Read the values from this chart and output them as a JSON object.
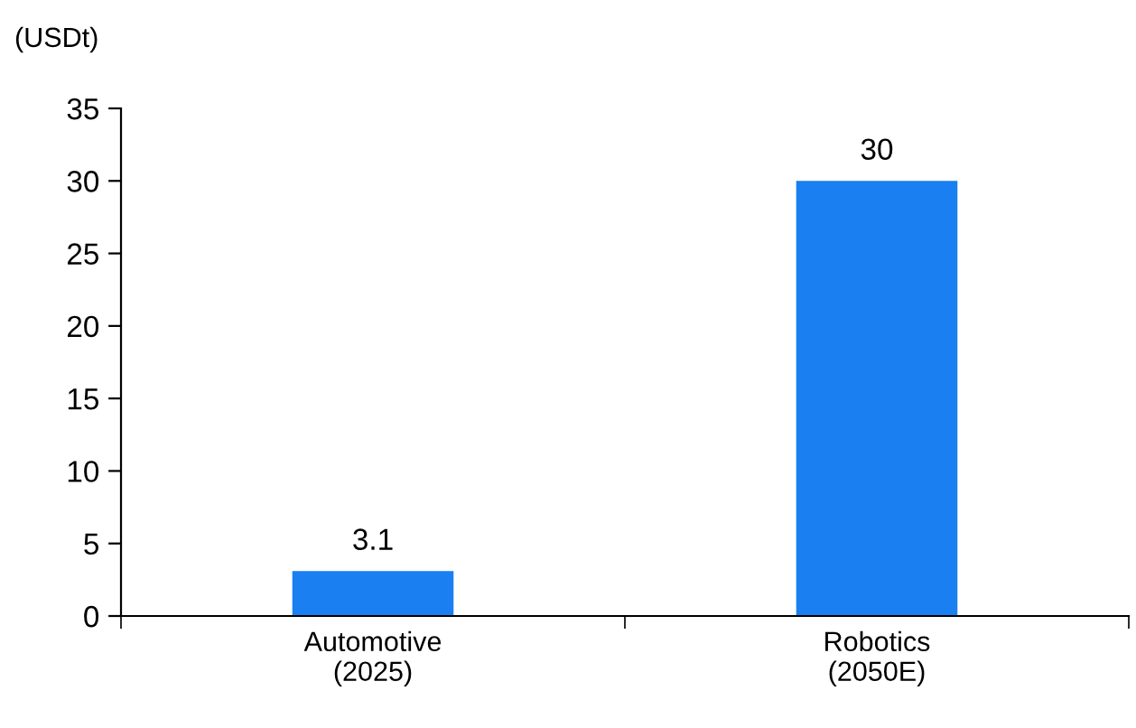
{
  "chart_data": {
    "type": "bar",
    "ylabel": "(USDt)",
    "categories": [
      "Automotive\n(2025)",
      "Robotics\n(2050E)"
    ],
    "values": [
      3.1,
      30
    ],
    "color": "#1a7ff0",
    "ylim": [
      0,
      35
    ],
    "yticks": [
      0,
      5,
      10,
      15,
      20,
      25,
      30,
      35
    ],
    "data_labels": true,
    "grid": false,
    "legend": false
  }
}
